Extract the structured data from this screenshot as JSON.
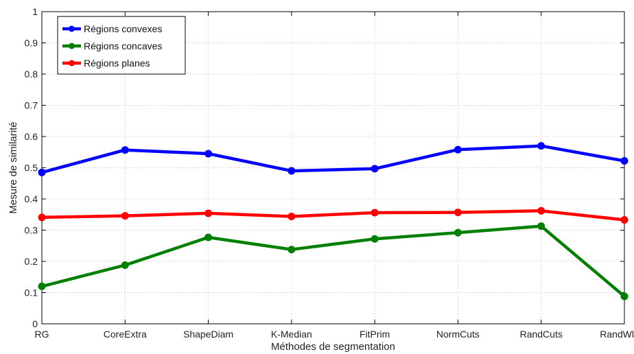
{
  "chart_data": {
    "type": "line",
    "categories": [
      "RG",
      "CoreExtra",
      "ShapeDiam",
      "K-Median",
      "FitPrim",
      "NormCuts",
      "RandCuts",
      "RandWlaks"
    ],
    "series": [
      {
        "name": "Régions convexes",
        "color": "#0000ff",
        "values": [
          0.485,
          0.557,
          0.545,
          0.49,
          0.497,
          0.558,
          0.57,
          0.522
        ]
      },
      {
        "name": "Régions concaves",
        "color": "#008000",
        "values": [
          0.12,
          0.188,
          0.277,
          0.238,
          0.272,
          0.292,
          0.313,
          0.088
        ]
      },
      {
        "name": "Régions planes",
        "color": "#ff0000",
        "values": [
          0.341,
          0.346,
          0.354,
          0.344,
          0.356,
          0.357,
          0.362,
          0.333
        ]
      }
    ],
    "xlabel": "Méthodes de segmentation",
    "ylabel": "Mesure de similarité",
    "ylim": [
      0,
      1
    ],
    "yticks": [
      "0",
      "0.1",
      "0.2",
      "0.3",
      "0.4",
      "0.5",
      "0.6",
      "0.7",
      "0.8",
      "0.9",
      "1"
    ],
    "grid": true,
    "legend_position": "top-left"
  }
}
